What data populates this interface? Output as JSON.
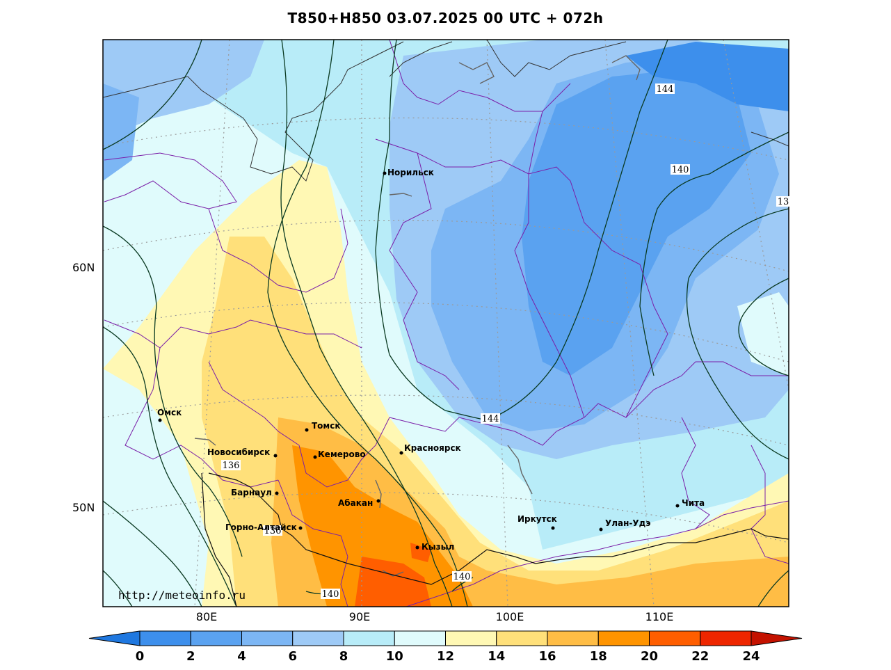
{
  "title": "T850+H850 03.07.2025 00 UTC + 072h",
  "credit": "http://meteoinfo.ru",
  "lat_labels": [
    "60N",
    "50N"
  ],
  "lon_labels": [
    "80E",
    "90E",
    "100E",
    "110E"
  ],
  "colorbar": {
    "ticks": [
      "0",
      "2",
      "4",
      "6",
      "8",
      "10",
      "12",
      "14",
      "16",
      "18",
      "20",
      "22",
      "24"
    ],
    "colors": [
      "#1f78e0",
      "#3d8fec",
      "#5aa2f0",
      "#7cb6f4",
      "#9ecaf6",
      "#b8ecf8",
      "#e0fbfc",
      "#fff8b4",
      "#ffe07a",
      "#ffbd45",
      "#ff9400",
      "#ff5e00",
      "#ee2600",
      "#c41200"
    ]
  },
  "cities": [
    {
      "name": "Норильск"
    },
    {
      "name": "Омск"
    },
    {
      "name": "Томск"
    },
    {
      "name": "Новосибирск"
    },
    {
      "name": "Кемерово"
    },
    {
      "name": "Красноярск"
    },
    {
      "name": "Барнаул"
    },
    {
      "name": "Абакан"
    },
    {
      "name": "Горно-Алтайск"
    },
    {
      "name": "Кызыл"
    },
    {
      "name": "Иркутск"
    },
    {
      "name": "Улан-Удэ"
    },
    {
      "name": "Чита"
    }
  ],
  "contour_labels": [
    "144",
    "140",
    "13",
    "144",
    "136",
    "136",
    "140",
    "140"
  ]
}
